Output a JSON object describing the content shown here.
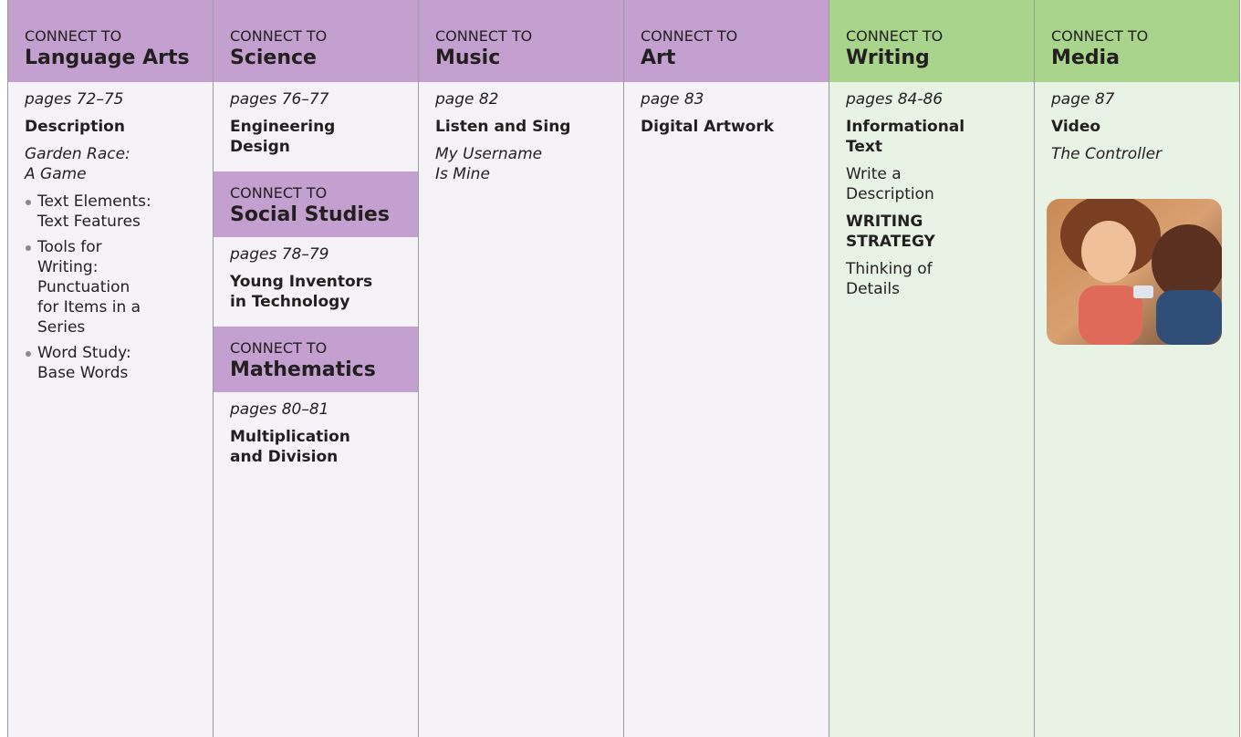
{
  "columns": [
    {
      "sections": [
        {
          "connect": "CONNECT TO",
          "subject": "Language Arts",
          "pages": "pages 72–75",
          "content": [
            {
              "bold": [
                "Description"
              ]
            },
            {
              "italic": [
                "Garden Race:",
                "A Game"
              ]
            },
            {
              "bullets": [
                [
                  "Text Elements:",
                  "Text Features"
                ],
                [
                  "Tools for",
                  "Writing:",
                  "Punctuation",
                  "for Items in a",
                  "Series"
                ],
                [
                  "Word Study:",
                  "Base Words"
                ]
              ]
            }
          ]
        }
      ]
    },
    {
      "sections": [
        {
          "connect": "CONNECT TO",
          "subject": "Science",
          "pages": "pages 76–77",
          "content": [
            {
              "bold": [
                "Engineering",
                "Design"
              ]
            }
          ]
        },
        {
          "connect": "CONNECT TO",
          "subject": "Social Studies",
          "pages": "pages 78–79",
          "content": [
            {
              "bold": [
                "Young Inventors",
                "in Technology"
              ]
            }
          ]
        },
        {
          "connect": "CONNECT TO",
          "subject": "Mathematics",
          "pages": "pages 80–81",
          "content": [
            {
              "bold": [
                "Multiplication",
                "and Division"
              ]
            }
          ]
        }
      ]
    },
    {
      "sections": [
        {
          "connect": "CONNECT TO",
          "subject": "Music",
          "pages": "page 82",
          "content": [
            {
              "bold": [
                "Listen and Sing"
              ]
            },
            {
              "italic": [
                "My Username",
                "Is Mine"
              ]
            }
          ]
        }
      ]
    },
    {
      "sections": [
        {
          "connect": "CONNECT TO",
          "subject": "Art",
          "pages": "page 83",
          "content": [
            {
              "bold": [
                "Digital Artwork"
              ]
            }
          ]
        }
      ]
    },
    {
      "sections": [
        {
          "connect": "CONNECT TO",
          "subject": "Writing",
          "pages": "pages 84-86",
          "content": [
            {
              "bold": [
                "Informational",
                "Text"
              ]
            },
            {
              "plain": [
                "Write a",
                "Description"
              ]
            },
            {
              "bold": [
                "WRITING",
                "STRATEGY"
              ]
            },
            {
              "plain": [
                "Thinking of",
                "Details"
              ]
            }
          ]
        }
      ]
    },
    {
      "sections": [
        {
          "connect": "CONNECT TO",
          "subject": "Media",
          "pages": "page 87",
          "content": [
            {
              "bold": [
                "Video"
              ]
            },
            {
              "italic": [
                "The Controller"
              ]
            }
          ]
        }
      ]
    }
  ]
}
